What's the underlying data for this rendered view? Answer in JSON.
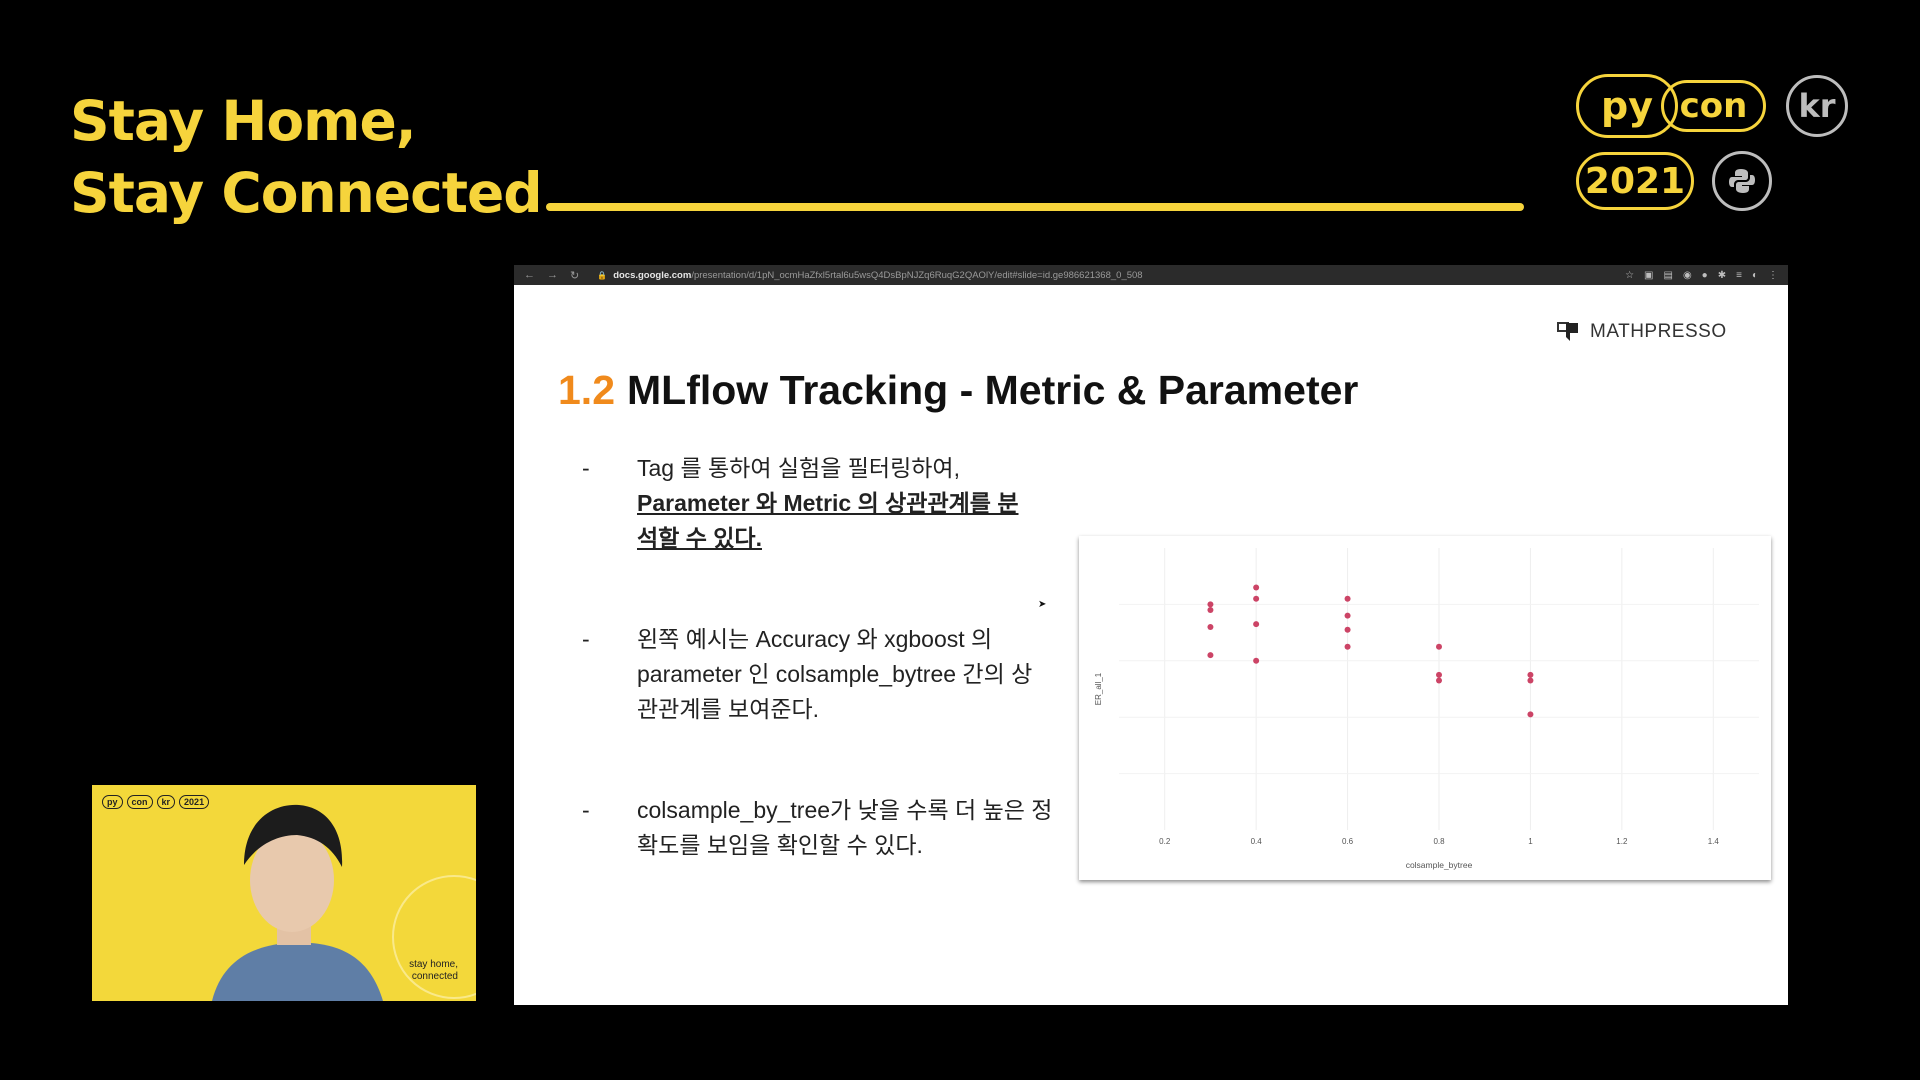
{
  "frame": {
    "slogan": [
      "Stay Home,",
      "Stay Connected"
    ],
    "badges": {
      "py": "py",
      "con": "con",
      "kr": "kr",
      "year": "2021"
    },
    "accent": "#f6d43c"
  },
  "browser": {
    "url_domain": "docs.google.com",
    "url_path": "/presentation/d/1pN_ocmHaZfxl5rtal6u5wsQ4DsBpNJZq6RuqG2QAOlY/edit#slide=id.ge986621368_0_508"
  },
  "slide": {
    "brand": "MATHPRESSO",
    "title_number": "1.2",
    "title_text": "MLflow Tracking - Metric & Parameter",
    "bullets": [
      {
        "dash": "-",
        "line1": "Tag 를 통하여 실험을 필터링하여,",
        "emph": "Parameter 와 Metric 의 상관관계를 분석할 수 있다."
      },
      {
        "dash": "-",
        "text": "왼쪽 예시는 Accuracy 와 xgboost 의 parameter 인 colsample_bytree 간의 상관관계를 보여준다."
      },
      {
        "dash": "-",
        "text": "colsample_by_tree가 낮을 수록 더 높은 정확도를 보임을 확인할 수 있다."
      }
    ]
  },
  "chart_data": {
    "type": "scatter",
    "xlabel": "colsample_bytree",
    "ylabel": "ER_all_1",
    "xlim": [
      0.1,
      1.5
    ],
    "ylim": [
      0.0,
      1.0
    ],
    "x_ticks": [
      "0.2",
      "0.4",
      "0.6",
      "0.8",
      "1",
      "1.2",
      "1.4"
    ],
    "x_tick_values": [
      0.2,
      0.4,
      0.6,
      0.8,
      1.0,
      1.2,
      1.4
    ],
    "grid": true,
    "point_color": "#cc4466",
    "x": [
      0.3,
      0.3,
      0.3,
      0.3,
      0.4,
      0.4,
      0.4,
      0.4,
      0.6,
      0.6,
      0.6,
      0.6,
      0.8,
      0.8,
      0.8,
      1.0,
      1.0,
      1.0
    ],
    "y": [
      0.8,
      0.78,
      0.72,
      0.62,
      0.86,
      0.82,
      0.73,
      0.6,
      0.82,
      0.76,
      0.71,
      0.65,
      0.65,
      0.55,
      0.53,
      0.55,
      0.53,
      0.41
    ]
  },
  "webcam": {
    "logos": [
      "py",
      "con",
      "kr",
      "2021"
    ],
    "tag_line1": "stay home,",
    "tag_line2": "connected"
  }
}
